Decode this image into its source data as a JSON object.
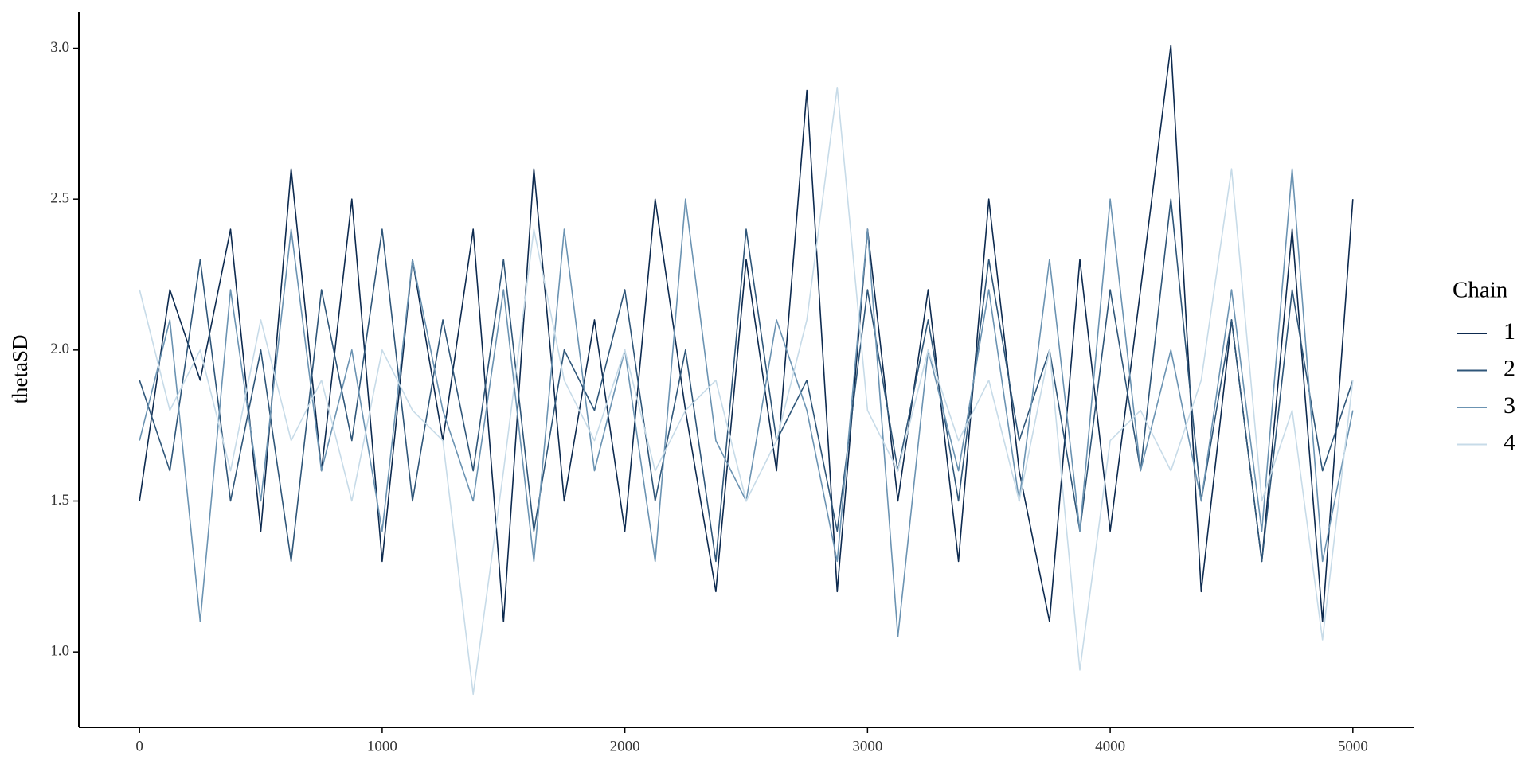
{
  "chart_data": {
    "type": "line",
    "y_label": "thetaSD",
    "legend_title": "Chain",
    "legend": "right",
    "grid": false,
    "x": [
      0,
      125,
      250,
      375,
      500,
      625,
      750,
      875,
      1000,
      1125,
      1250,
      1375,
      1500,
      1625,
      1750,
      1875,
      2000,
      2125,
      2250,
      2375,
      2500,
      2625,
      2750,
      2875,
      3000,
      3125,
      3250,
      3375,
      3500,
      3625,
      3750,
      3875,
      4000,
      4125,
      4250,
      4375,
      4500,
      4625,
      4750,
      4875,
      5000
    ],
    "series": [
      {
        "name": "1",
        "color": "#0d2a4f",
        "values": [
          1.5,
          2.2,
          1.9,
          2.4,
          1.4,
          2.6,
          1.6,
          2.5,
          1.3,
          2.3,
          1.7,
          2.4,
          1.1,
          2.6,
          1.5,
          2.1,
          1.4,
          2.5,
          1.8,
          1.2,
          2.3,
          1.6,
          2.86,
          1.2,
          2.4,
          1.5,
          2.2,
          1.3,
          2.5,
          1.6,
          1.1,
          2.3,
          1.4,
          2.2,
          3.01,
          1.2,
          2.1,
          1.3,
          2.4,
          1.1,
          2.5
        ]
      },
      {
        "name": "2",
        "color": "#2f5679",
        "values": [
          1.9,
          1.6,
          2.3,
          1.5,
          2.0,
          1.3,
          2.2,
          1.7,
          2.4,
          1.5,
          2.1,
          1.6,
          2.3,
          1.4,
          2.0,
          1.8,
          2.2,
          1.5,
          2.0,
          1.3,
          2.4,
          1.7,
          1.9,
          1.4,
          2.2,
          1.6,
          2.1,
          1.5,
          2.3,
          1.7,
          2.0,
          1.4,
          2.2,
          1.6,
          2.5,
          1.5,
          2.1,
          1.3,
          2.2,
          1.6,
          1.9
        ]
      },
      {
        "name": "3",
        "color": "#6b93b2",
        "values": [
          1.7,
          2.1,
          1.1,
          2.2,
          1.5,
          2.4,
          1.6,
          2.0,
          1.4,
          2.3,
          1.8,
          1.5,
          2.2,
          1.3,
          2.4,
          1.6,
          2.0,
          1.3,
          2.5,
          1.7,
          1.5,
          2.1,
          1.8,
          1.3,
          2.4,
          1.05,
          2.0,
          1.6,
          2.2,
          1.5,
          2.3,
          1.4,
          2.5,
          1.6,
          2.0,
          1.5,
          2.2,
          1.4,
          2.6,
          1.3,
          1.8
        ]
      },
      {
        "name": "4",
        "color": "#c7dbe8",
        "values": [
          2.2,
          1.8,
          2.0,
          1.6,
          2.1,
          1.7,
          1.9,
          1.5,
          2.0,
          1.8,
          1.7,
          0.86,
          1.6,
          2.4,
          1.9,
          1.7,
          2.0,
          1.6,
          1.8,
          1.9,
          1.5,
          1.7,
          2.1,
          2.87,
          1.8,
          1.6,
          2.0,
          1.7,
          1.9,
          1.5,
          2.0,
          0.94,
          1.7,
          1.8,
          1.6,
          1.9,
          2.6,
          1.5,
          1.8,
          1.04,
          1.9
        ]
      }
    ],
    "xlim": [
      -250,
      5250
    ],
    "ylim": [
      0.75,
      3.12
    ],
    "xticks": [
      0,
      1000,
      2000,
      3000,
      4000,
      5000
    ],
    "yticks": [
      {
        "value": 1,
        "label": "1.0"
      },
      1.5,
      {
        "value": 2,
        "label": "2.0"
      },
      2.5,
      {
        "value": 3,
        "label": "3.0"
      }
    ]
  }
}
